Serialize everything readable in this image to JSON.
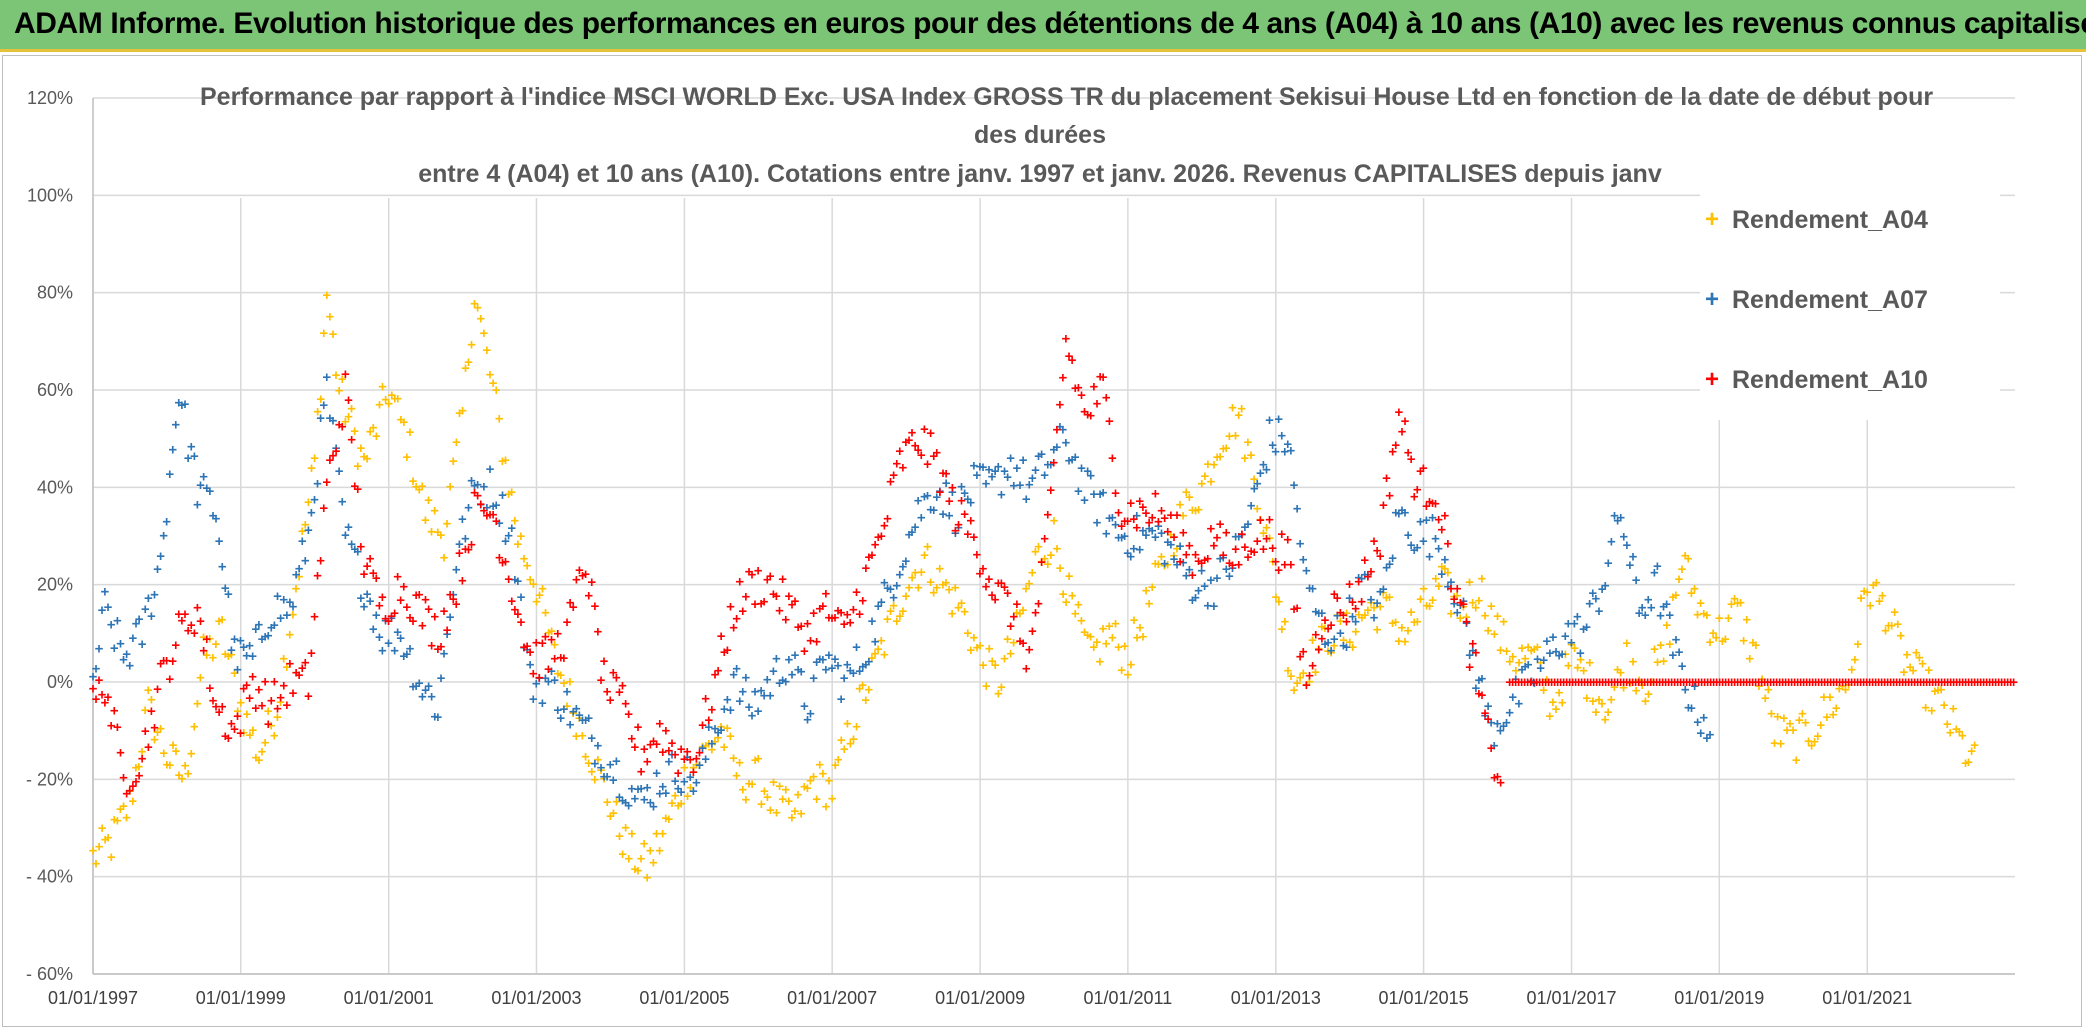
{
  "banner": {
    "text": "ADAM Informe. Evolution historique des performances en euros pour des détentions de 4 ans (A04) à 10 ans (A10) avec les revenus connus capitalisés"
  },
  "chart_data": {
    "type": "scatter",
    "title_lines": [
      "Performance par rapport à l'indice MSCI WORLD Exc. USA Index GROSS TR  du placement Sekisui House Ltd en fonction de la date de début pour",
      "des durées",
      "entre 4 (A04) et 10 ans (A10). Cotations entre janv. 1997 et janv. 2026. Revenus CAPITALISES depuis janv"
    ],
    "xlabel": "",
    "ylabel": "",
    "x_tick_labels": [
      "01/01/1997",
      "01/01/1999",
      "01/01/2001",
      "01/01/2003",
      "01/01/2005",
      "01/01/2007",
      "01/01/2009",
      "01/01/2011",
      "01/01/2013",
      "01/01/2015",
      "01/01/2017",
      "01/01/2019",
      "01/01/2021"
    ],
    "x_range": [
      "1997-01-01",
      "2023-01-01"
    ],
    "y_tick_labels": [
      "120%",
      "100%",
      "80%",
      "60%",
      "40%",
      "20%",
      "0%",
      "- 20%",
      "- 40%",
      "- 60%"
    ],
    "ylim": [
      -0.6,
      1.2
    ],
    "grid": true,
    "legend_position": "right",
    "marker": "+",
    "series": [
      {
        "name": "Rendement_A04",
        "color": "#ffc000",
        "points": [
          [
            "1997-01-01",
            -0.36
          ],
          [
            "1997-04-01",
            -0.33
          ],
          [
            "1997-07-01",
            -0.25
          ],
          [
            "1997-10-01",
            -0.05
          ],
          [
            "1998-01-01",
            -0.15
          ],
          [
            "1998-04-01",
            -0.2
          ],
          [
            "1998-07-01",
            0.05
          ],
          [
            "1998-10-01",
            0.1
          ],
          [
            "1999-01-01",
            -0.05
          ],
          [
            "1999-04-01",
            -0.15
          ],
          [
            "1999-07-01",
            -0.05
          ],
          [
            "1999-10-01",
            0.2
          ],
          [
            "2000-01-01",
            0.45
          ],
          [
            "2000-03-01",
            0.8
          ],
          [
            "2000-05-01",
            0.6
          ],
          [
            "2000-09-01",
            0.45
          ],
          [
            "2001-01-01",
            0.6
          ],
          [
            "2001-04-01",
            0.5
          ],
          [
            "2001-07-01",
            0.35
          ],
          [
            "2001-10-01",
            0.3
          ],
          [
            "2002-01-01",
            0.55
          ],
          [
            "2002-03-01",
            0.8
          ],
          [
            "2002-06-01",
            0.6
          ],
          [
            "2002-10-01",
            0.3
          ],
          [
            "2003-01-01",
            0.2
          ],
          [
            "2003-04-01",
            0.05
          ],
          [
            "2003-07-01",
            -0.05
          ],
          [
            "2003-10-01",
            -0.15
          ],
          [
            "2004-01-01",
            -0.25
          ],
          [
            "2004-04-01",
            -0.35
          ],
          [
            "2004-07-01",
            -0.38
          ],
          [
            "2004-10-01",
            -0.3
          ],
          [
            "2005-01-01",
            -0.2
          ],
          [
            "2005-04-01",
            -0.15
          ],
          [
            "2005-07-01",
            -0.1
          ],
          [
            "2005-10-01",
            -0.2
          ],
          [
            "2006-01-01",
            -0.2
          ],
          [
            "2006-04-01",
            -0.25
          ],
          [
            "2006-07-01",
            -0.28
          ],
          [
            "2006-10-01",
            -0.2
          ],
          [
            "2007-01-01",
            -0.22
          ],
          [
            "2007-04-01",
            -0.1
          ],
          [
            "2007-07-01",
            0.0
          ],
          [
            "2007-10-01",
            0.1
          ],
          [
            "2008-01-01",
            0.2
          ],
          [
            "2008-04-01",
            0.25
          ],
          [
            "2008-07-01",
            0.2
          ],
          [
            "2008-10-01",
            0.15
          ],
          [
            "2009-01-01",
            0.05
          ],
          [
            "2009-04-01",
            0.0
          ],
          [
            "2009-07-01",
            0.1
          ],
          [
            "2009-10-01",
            0.25
          ],
          [
            "2010-01-01",
            0.3
          ],
          [
            "2010-04-01",
            0.15
          ],
          [
            "2010-07-01",
            0.05
          ],
          [
            "2010-10-01",
            0.1
          ],
          [
            "2011-01-01",
            0.05
          ],
          [
            "2011-04-01",
            0.15
          ],
          [
            "2011-07-01",
            0.25
          ],
          [
            "2011-10-01",
            0.35
          ],
          [
            "2012-01-01",
            0.4
          ],
          [
            "2012-04-01",
            0.5
          ],
          [
            "2012-07-01",
            0.55
          ],
          [
            "2012-10-01",
            0.4
          ],
          [
            "2013-01-01",
            0.2
          ],
          [
            "2013-04-01",
            0.0
          ],
          [
            "2013-07-01",
            0.05
          ],
          [
            "2013-10-01",
            0.1
          ],
          [
            "2014-01-01",
            0.1
          ],
          [
            "2014-04-01",
            0.15
          ],
          [
            "2014-07-01",
            0.15
          ],
          [
            "2014-10-01",
            0.1
          ],
          [
            "2015-01-01",
            0.15
          ],
          [
            "2015-04-01",
            0.2
          ],
          [
            "2015-07-01",
            0.15
          ],
          [
            "2015-10-01",
            0.2
          ],
          [
            "2016-01-01",
            0.1
          ],
          [
            "2016-04-01",
            0.05
          ],
          [
            "2016-07-01",
            0.05
          ],
          [
            "2016-10-01",
            -0.05
          ],
          [
            "2017-01-01",
            0.05
          ],
          [
            "2017-04-01",
            0.0
          ],
          [
            "2017-07-01",
            -0.05
          ],
          [
            "2017-10-01",
            0.05
          ],
          [
            "2018-01-01",
            0.0
          ],
          [
            "2018-04-01",
            0.05
          ],
          [
            "2018-07-01",
            0.25
          ],
          [
            "2018-10-01",
            0.15
          ],
          [
            "2019-01-01",
            0.1
          ],
          [
            "2019-04-01",
            0.15
          ],
          [
            "2019-07-01",
            0.05
          ],
          [
            "2019-10-01",
            -0.1
          ],
          [
            "2020-01-01",
            -0.12
          ],
          [
            "2020-04-01",
            -0.1
          ],
          [
            "2020-07-01",
            -0.05
          ],
          [
            "2020-10-01",
            0.0
          ],
          [
            "2021-01-01",
            0.2
          ],
          [
            "2021-04-01",
            0.15
          ],
          [
            "2021-07-01",
            0.05
          ],
          [
            "2021-10-01",
            0.0
          ],
          [
            "2022-01-01",
            -0.05
          ],
          [
            "2022-04-01",
            -0.12
          ],
          [
            "2022-07-01",
            -0.18
          ]
        ]
      },
      {
        "name": "Rendement_A07",
        "color": "#2e75b6",
        "points": [
          [
            "1997-01-01",
            0.0
          ],
          [
            "1997-03-01",
            0.15
          ],
          [
            "1997-06-01",
            0.05
          ],
          [
            "1997-09-01",
            0.1
          ],
          [
            "1997-12-01",
            0.25
          ],
          [
            "1998-03-01",
            0.6
          ],
          [
            "1998-06-01",
            0.4
          ],
          [
            "1998-09-01",
            0.35
          ],
          [
            "1998-12-01",
            0.05
          ],
          [
            "1999-03-01",
            0.05
          ],
          [
            "1999-06-01",
            0.15
          ],
          [
            "1999-09-01",
            0.15
          ],
          [
            "1999-12-01",
            0.3
          ],
          [
            "2000-03-01",
            0.6
          ],
          [
            "2000-06-01",
            0.3
          ],
          [
            "2000-09-01",
            0.2
          ],
          [
            "2000-12-01",
            0.1
          ],
          [
            "2001-03-01",
            0.1
          ],
          [
            "2001-06-01",
            0.0
          ],
          [
            "2001-09-01",
            -0.05
          ],
          [
            "2001-12-01",
            0.25
          ],
          [
            "2002-03-01",
            0.4
          ],
          [
            "2002-06-01",
            0.4
          ],
          [
            "2002-09-01",
            0.3
          ],
          [
            "2002-12-01",
            0.0
          ],
          [
            "2003-03-01",
            0.0
          ],
          [
            "2003-06-01",
            -0.05
          ],
          [
            "2003-09-01",
            -0.1
          ],
          [
            "2003-12-01",
            -0.15
          ],
          [
            "2004-03-01",
            -0.2
          ],
          [
            "2004-06-01",
            -0.25
          ],
          [
            "2004-09-01",
            -0.2
          ],
          [
            "2004-12-01",
            -0.18
          ],
          [
            "2005-03-01",
            -0.2
          ],
          [
            "2005-06-01",
            -0.1
          ],
          [
            "2005-09-01",
            0.0
          ],
          [
            "2005-12-01",
            -0.05
          ],
          [
            "2006-03-01",
            0.0
          ],
          [
            "2006-06-01",
            0.05
          ],
          [
            "2006-09-01",
            -0.05
          ],
          [
            "2006-12-01",
            0.05
          ],
          [
            "2007-03-01",
            0.0
          ],
          [
            "2007-06-01",
            0.05
          ],
          [
            "2007-09-01",
            0.15
          ],
          [
            "2007-12-01",
            0.25
          ],
          [
            "2008-03-01",
            0.35
          ],
          [
            "2008-06-01",
            0.4
          ],
          [
            "2008-09-01",
            0.35
          ],
          [
            "2008-12-01",
            0.4
          ],
          [
            "2009-03-01",
            0.4
          ],
          [
            "2009-06-01",
            0.45
          ],
          [
            "2009-09-01",
            0.4
          ],
          [
            "2009-12-01",
            0.45
          ],
          [
            "2010-03-01",
            0.5
          ],
          [
            "2010-06-01",
            0.4
          ],
          [
            "2010-09-01",
            0.35
          ],
          [
            "2010-12-01",
            0.3
          ],
          [
            "2011-03-01",
            0.3
          ],
          [
            "2011-06-01",
            0.3
          ],
          [
            "2011-09-01",
            0.25
          ],
          [
            "2011-12-01",
            0.2
          ],
          [
            "2012-03-01",
            0.2
          ],
          [
            "2012-06-01",
            0.25
          ],
          [
            "2012-09-01",
            0.35
          ],
          [
            "2012-12-01",
            0.5
          ],
          [
            "2013-03-01",
            0.5
          ],
          [
            "2013-06-01",
            0.2
          ],
          [
            "2013-09-01",
            0.1
          ],
          [
            "2013-12-01",
            0.1
          ],
          [
            "2014-03-01",
            0.2
          ],
          [
            "2014-06-01",
            0.15
          ],
          [
            "2014-09-01",
            0.35
          ],
          [
            "2014-12-01",
            0.3
          ],
          [
            "2015-03-01",
            0.3
          ],
          [
            "2015-06-01",
            0.2
          ],
          [
            "2015-09-01",
            0.05
          ],
          [
            "2015-12-01",
            -0.1
          ],
          [
            "2016-03-01",
            -0.05
          ],
          [
            "2016-06-01",
            0.0
          ],
          [
            "2016-09-01",
            0.05
          ],
          [
            "2016-12-01",
            0.1
          ],
          [
            "2017-03-01",
            0.1
          ],
          [
            "2017-06-01",
            0.2
          ],
          [
            "2017-09-01",
            0.35
          ],
          [
            "2017-12-01",
            0.15
          ],
          [
            "2018-03-01",
            0.2
          ],
          [
            "2018-06-01",
            0.05
          ],
          [
            "2018-09-01",
            -0.05
          ],
          [
            "2018-12-01",
            -0.1
          ]
        ]
      },
      {
        "name": "Rendement_A10",
        "color": "#ff0000",
        "points": [
          [
            "1997-01-01",
            -0.05
          ],
          [
            "1997-03-01",
            0.0
          ],
          [
            "1997-06-01",
            -0.2
          ],
          [
            "1997-09-01",
            -0.15
          ],
          [
            "1997-12-01",
            0.0
          ],
          [
            "1998-03-01",
            0.1
          ],
          [
            "1998-06-01",
            0.15
          ],
          [
            "1998-09-01",
            -0.05
          ],
          [
            "1998-12-01",
            -0.1
          ],
          [
            "1999-03-01",
            0.0
          ],
          [
            "1999-06-01",
            -0.05
          ],
          [
            "1999-09-01",
            0.0
          ],
          [
            "1999-12-01",
            0.0
          ],
          [
            "2000-03-01",
            0.4
          ],
          [
            "2000-06-01",
            0.6
          ],
          [
            "2000-09-01",
            0.25
          ],
          [
            "2000-12-01",
            0.15
          ],
          [
            "2001-03-01",
            0.2
          ],
          [
            "2001-06-01",
            0.15
          ],
          [
            "2001-09-01",
            0.1
          ],
          [
            "2001-12-01",
            0.2
          ],
          [
            "2002-03-01",
            0.35
          ],
          [
            "2002-06-01",
            0.35
          ],
          [
            "2002-09-01",
            0.2
          ],
          [
            "2002-12-01",
            0.05
          ],
          [
            "2003-03-01",
            0.05
          ],
          [
            "2003-06-01",
            0.1
          ],
          [
            "2003-09-01",
            0.25
          ],
          [
            "2003-12-01",
            0.0
          ],
          [
            "2004-03-01",
            -0.05
          ],
          [
            "2004-06-01",
            -0.15
          ],
          [
            "2004-09-01",
            -0.1
          ],
          [
            "2004-12-01",
            -0.15
          ],
          [
            "2005-03-01",
            -0.15
          ],
          [
            "2005-06-01",
            0.0
          ],
          [
            "2005-09-01",
            0.15
          ],
          [
            "2005-12-01",
            0.2
          ],
          [
            "2006-03-01",
            0.2
          ],
          [
            "2006-06-01",
            0.15
          ],
          [
            "2006-09-01",
            0.1
          ],
          [
            "2006-12-01",
            0.15
          ],
          [
            "2007-03-01",
            0.1
          ],
          [
            "2007-06-01",
            0.2
          ],
          [
            "2007-09-01",
            0.3
          ],
          [
            "2007-12-01",
            0.45
          ],
          [
            "2008-03-01",
            0.5
          ],
          [
            "2008-06-01",
            0.45
          ],
          [
            "2008-09-01",
            0.35
          ],
          [
            "2008-12-01",
            0.3
          ],
          [
            "2009-03-01",
            0.2
          ],
          [
            "2009-06-01",
            0.15
          ],
          [
            "2009-09-01",
            0.05
          ],
          [
            "2009-12-01",
            0.3
          ],
          [
            "2010-03-01",
            0.7
          ],
          [
            "2010-06-01",
            0.55
          ],
          [
            "2010-09-01",
            0.6
          ],
          [
            "2010-12-01",
            0.35
          ],
          [
            "2011-03-01",
            0.35
          ],
          [
            "2011-06-01",
            0.35
          ],
          [
            "2011-09-01",
            0.3
          ],
          [
            "2011-12-01",
            0.25
          ],
          [
            "2012-03-01",
            0.3
          ],
          [
            "2012-06-01",
            0.25
          ],
          [
            "2012-09-01",
            0.3
          ],
          [
            "2012-12-01",
            0.3
          ],
          [
            "2013-03-01",
            0.25
          ],
          [
            "2013-06-01",
            0.0
          ],
          [
            "2013-09-01",
            0.15
          ],
          [
            "2013-12-01",
            0.15
          ],
          [
            "2014-03-01",
            0.2
          ],
          [
            "2014-06-01",
            0.3
          ],
          [
            "2014-09-01",
            0.55
          ],
          [
            "2014-12-01",
            0.4
          ],
          [
            "2015-03-01",
            0.4
          ],
          [
            "2015-06-01",
            0.2
          ],
          [
            "2015-09-01",
            0.05
          ],
          [
            "2015-12-01",
            -0.15
          ],
          [
            "2016-02-01",
            -0.2
          ]
        ]
      }
    ],
    "flat_zero_segment": {
      "series": "Rendement_A10",
      "x_range": [
        "2016-03-01",
        "2023-01-01"
      ],
      "y": 0.0
    }
  }
}
